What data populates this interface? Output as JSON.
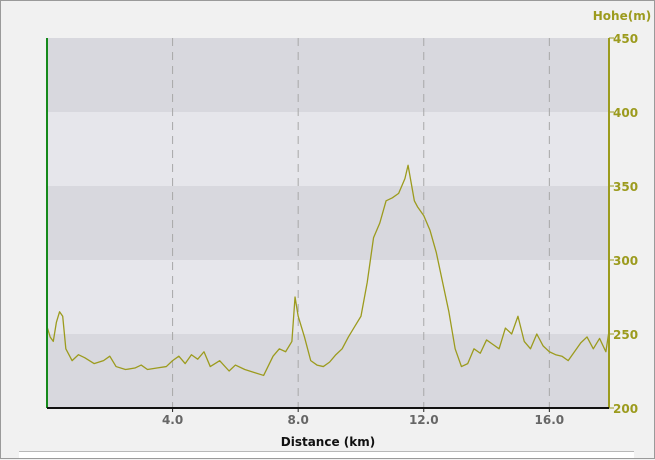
{
  "chart_data": {
    "type": "area",
    "title": "",
    "xlabel": "Distance (km)",
    "ylabel": "Hohe(m)",
    "xlim": [
      0,
      17.9
    ],
    "ylim": [
      200,
      450
    ],
    "x_ticks": [
      "4.0",
      "8.0",
      "12.0",
      "16.0"
    ],
    "y_ticks": [
      "200",
      "250",
      "300",
      "350",
      "400",
      "450"
    ],
    "grid": "vertical dashed lines, alternating horizontal bands",
    "colors": {
      "line": "#9c9b1e",
      "right_axis": "#9c9b1e",
      "left_axis": "#15891b",
      "band_dark": "#d8d8de",
      "band_light": "#e6e6eb",
      "grid": "#a8a8a8"
    },
    "series": [
      {
        "x": [
          0,
          0.1,
          0.2,
          0.3,
          0.4,
          0.5,
          0.6,
          0.8,
          1.0,
          1.2,
          1.5,
          1.8,
          2.0,
          2.2,
          2.5,
          2.8,
          3.0,
          3.2,
          3.5,
          3.8,
          4.0,
          4.2,
          4.4,
          4.6,
          4.8,
          5.0,
          5.2,
          5.5,
          5.8,
          6.0,
          6.3,
          6.6,
          6.9,
          7.2,
          7.4,
          7.6,
          7.8,
          7.9,
          8.0,
          8.1,
          8.2,
          8.4,
          8.6,
          8.8,
          9.0,
          9.2,
          9.4,
          9.6,
          9.8,
          10.0,
          10.2,
          10.4,
          10.6,
          10.8,
          11.0,
          11.2,
          11.4,
          11.5,
          11.6,
          11.7,
          11.8,
          12.0,
          12.2,
          12.4,
          12.6,
          12.8,
          13.0,
          13.2,
          13.4,
          13.6,
          13.8,
          14.0,
          14.2,
          14.4,
          14.6,
          14.8,
          15.0,
          15.2,
          15.4,
          15.6,
          15.8,
          16.0,
          16.2,
          16.4,
          16.6,
          16.8,
          17.0,
          17.2,
          17.4,
          17.6,
          17.8,
          17.9
        ],
        "values": [
          255,
          248,
          245,
          258,
          265,
          262,
          240,
          232,
          236,
          234,
          230,
          232,
          235,
          228,
          226,
          227,
          229,
          226,
          227,
          228,
          232,
          235,
          230,
          236,
          233,
          238,
          228,
          232,
          225,
          229,
          226,
          224,
          222,
          235,
          240,
          238,
          245,
          275,
          262,
          255,
          248,
          232,
          229,
          228,
          231,
          236,
          240,
          248,
          255,
          262,
          285,
          315,
          325,
          340,
          342,
          345,
          355,
          364,
          352,
          340,
          336,
          330,
          320,
          305,
          285,
          265,
          240,
          228,
          230,
          240,
          237,
          246,
          243,
          240,
          254,
          250,
          262,
          245,
          240,
          250,
          242,
          238,
          236,
          235,
          232,
          238,
          244,
          248,
          240,
          247,
          238,
          252
        ]
      }
    ]
  }
}
